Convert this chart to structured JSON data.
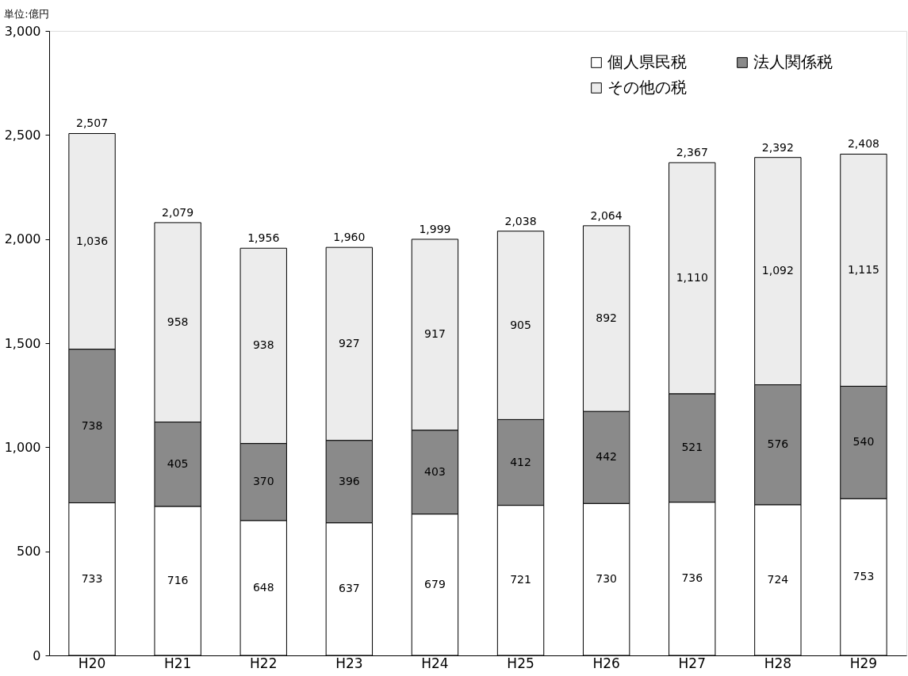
{
  "chart_data": {
    "type": "bar",
    "stacked": true,
    "annotations": [
      "単位:億円"
    ],
    "categories": [
      "H20",
      "H21",
      "H22",
      "H23",
      "H24",
      "H25",
      "H26",
      "H27",
      "H28",
      "H29"
    ],
    "series": [
      {
        "name": "個人県民税",
        "color": "#ffffff",
        "values": [
          733,
          716,
          648,
          637,
          679,
          721,
          730,
          736,
          724,
          753
        ]
      },
      {
        "name": "法人関係税",
        "color": "#8a8a8a",
        "values": [
          738,
          405,
          370,
          396,
          403,
          412,
          442,
          521,
          576,
          540
        ]
      },
      {
        "name": "その他の税",
        "color": "#ececec",
        "values": [
          1036,
          958,
          938,
          927,
          917,
          905,
          892,
          1110,
          1092,
          1115
        ],
        "value_labels": [
          "1,036",
          "958",
          "938",
          "927",
          "917",
          "905",
          "892",
          "1,110",
          "1,092",
          "1,115"
        ]
      }
    ],
    "totals": [
      "2,507",
      "2,079",
      "1,956",
      "1,960",
      "1,999",
      "2,038",
      "2,064",
      "2,367",
      "2,392",
      "2,408"
    ],
    "ylim": [
      0,
      3000
    ],
    "yticks": [
      0,
      500,
      {
        "value": 1000,
        "label": "1,000"
      },
      {
        "value": 1500,
        "label": "1,500"
      },
      {
        "value": 2000,
        "label": "2,000"
      },
      {
        "value": 2500,
        "label": "2,500"
      },
      {
        "value": 3000,
        "label": "3,000"
      }
    ],
    "data_labels": true,
    "grid": false,
    "legend": "top right"
  }
}
